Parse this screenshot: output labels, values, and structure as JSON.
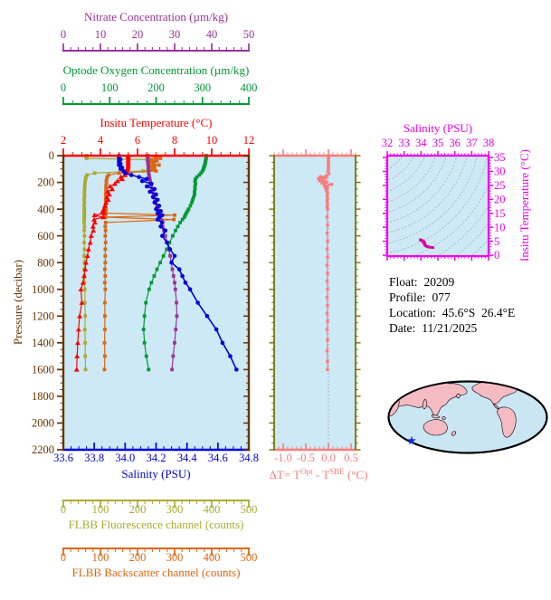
{
  "info": {
    "lines": [
      {
        "label": "Float:",
        "value": "20209"
      },
      {
        "label": "Profile:",
        "value": "077"
      },
      {
        "label": "Location:",
        "value": "45.6°S  26.4°E"
      },
      {
        "label": "Date:",
        "value": "11/21/2025"
      }
    ]
  },
  "colors": {
    "background": "#FFFFFF",
    "plot_bg": "#CDE9F5",
    "pressure": "#663300",
    "temperature": "#FF0000",
    "salinity": "#0000DD",
    "nitrate": "#993399",
    "oxygen": "#009933",
    "fluorescence": "#AAAA33",
    "backscatter": "#DD6611",
    "delta_t": "#F87C7C",
    "delta_t_side": "#737300",
    "ts_frame": "#EE00EE",
    "ts_line": "#FF1A1A",
    "ts_marker": "#DD00AA",
    "contour": "#A8A8A8",
    "zero_line": "#999999",
    "map_ocean": "#C9E6F2",
    "map_land": "#F5BBC3",
    "map_outline": "#000000",
    "star": "#1133EE",
    "info_text": "#000000"
  },
  "chart_data": [
    {
      "type": "line",
      "name": "pressure-profile-plot",
      "y_axis": {
        "label": "Pressure (decibar)",
        "min": 0,
        "max": 2200,
        "major_step": 200,
        "minor_step": 50
      },
      "x_axes": {
        "nitrate": {
          "title": "Nitrate Concentration (µm/kg)",
          "min": 0,
          "max": 50,
          "major": [
            "0",
            "10",
            "20",
            "30",
            "40",
            "50"
          ],
          "minor_step": 2
        },
        "oxygen": {
          "title": "Optode Oxygen Concentration (µm/kg)",
          "min": 0,
          "max": 400,
          "major": [
            "0",
            "100",
            "200",
            "300",
            "400"
          ],
          "minor_step": 20
        },
        "temperature": {
          "title": "Insitu Temperature (°C)",
          "min": 2,
          "max": 12,
          "major": [
            "2",
            "4",
            "6",
            "8",
            "10",
            "12"
          ],
          "minor_step": 0.5
        },
        "salinity": {
          "title": "Salinity (PSU)",
          "min": 33.6,
          "max": 34.8,
          "major": [
            "33.6",
            "33.8",
            "34.0",
            "34.2",
            "34.4",
            "34.6",
            "34.8"
          ],
          "minor_step": 0.05
        },
        "fluorescence": {
          "title": "FLBB Fluorescence channel (counts)",
          "min": 0,
          "max": 500,
          "major": [
            "0",
            "100",
            "200",
            "300",
            "400",
            "500"
          ],
          "minor_step": 20
        },
        "backscatter": {
          "title": "FLBB Backscatter channel (counts)",
          "min": 0,
          "max": 500,
          "major": [
            "0",
            "100",
            "200",
            "300",
            "400",
            "500"
          ],
          "minor_step": 20
        }
      },
      "pressure": [
        0,
        10,
        20,
        30,
        40,
        50,
        60,
        70,
        80,
        90,
        100,
        115,
        130,
        145,
        160,
        175,
        190,
        210,
        230,
        250,
        270,
        290,
        310,
        330,
        350,
        375,
        400,
        415,
        430,
        445,
        460,
        478,
        500,
        530,
        560,
        600,
        650,
        700,
        750,
        800,
        850,
        900,
        950,
        1000,
        1100,
        1200,
        1300,
        1400,
        1500,
        1600
      ],
      "series": [
        {
          "name": "Fluorescence",
          "axis": "fluorescence",
          "marker": "square",
          "color": "#AAAA33",
          "values": [
            62,
            61,
            63,
            225,
            238,
            242,
            236,
            243,
            240,
            244,
            238,
            215,
            85,
            64,
            61,
            60,
            59,
            58,
            58,
            57,
            57,
            57,
            57,
            56,
            57,
            56,
            57,
            56,
            57,
            56,
            57,
            56,
            56,
            57,
            56,
            57,
            56,
            57,
            56,
            57,
            56,
            57,
            57,
            58,
            58,
            59,
            58,
            59,
            59,
            60
          ]
        },
        {
          "name": "Backscatter",
          "axis": "backscatter",
          "marker": "square",
          "color": "#DD6611",
          "values": [
            225,
            248,
            262,
            238,
            252,
            230,
            244,
            258,
            235,
            246,
            240,
            250,
            150,
            122,
            118,
            117,
            116,
            116,
            115,
            115,
            115,
            114,
            115,
            114,
            115,
            114,
            115,
            114,
            115,
            300,
            114,
            298,
            114,
            113,
            114,
            113,
            114,
            113,
            113,
            113,
            112,
            113,
            112,
            113,
            112,
            112,
            112,
            111,
            112,
            111
          ]
        },
        {
          "name": "Oxygen",
          "axis": "oxygen",
          "marker": "square",
          "color": "#009933",
          "values": [
            308,
            308,
            308,
            307,
            307,
            306,
            306,
            305,
            304,
            303,
            302,
            300,
            297,
            293,
            288,
            285,
            284,
            285,
            284,
            284,
            283,
            283,
            281,
            279,
            277,
            274,
            270,
            268,
            265,
            263,
            261,
            257,
            252,
            247,
            242,
            236,
            229,
            223,
            216,
            209,
            202,
            196,
            190,
            185,
            178,
            175,
            173,
            175,
            179,
            184
          ]
        },
        {
          "name": "Temperature",
          "axis": "temperature",
          "marker": "triangle",
          "color": "#FF0000",
          "values": [
            5.5,
            5.5,
            5.51,
            5.5,
            5.49,
            5.5,
            5.5,
            5.49,
            5.5,
            5.48,
            5.47,
            5.44,
            5.38,
            5.32,
            5.1,
            5.18,
            4.92,
            4.78,
            4.52,
            4.64,
            4.4,
            4.48,
            4.35,
            4.42,
            4.3,
            4.24,
            4.18,
            4.12,
            4.2,
            3.68,
            4.15,
            3.66,
            3.7,
            3.6,
            3.62,
            3.5,
            3.45,
            3.36,
            3.3,
            3.22,
            3.18,
            3.12,
            3.06,
            2.95,
            3.0,
            2.88,
            2.82,
            2.78,
            2.74,
            2.72
          ]
        },
        {
          "name": "Nitrate",
          "axis": "nitrate",
          "marker": "square",
          "color": "#993399",
          "values": [
            22.8,
            22.8,
            22.8,
            22.8,
            22.8,
            22.8,
            22.8,
            22.9,
            22.9,
            22.9,
            22.9,
            23.0,
            23.0,
            23.1,
            23.2,
            23.3,
            23.4,
            23.5,
            23.7,
            23.9,
            24.1,
            24.3,
            24.5,
            24.7,
            24.9,
            25.2,
            25.5,
            25.6,
            25.8,
            25.9,
            26.1,
            26.3,
            26.5,
            26.8,
            27.1,
            27.5,
            28.0,
            28.4,
            28.8,
            29.1,
            29.4,
            29.7,
            30.0,
            30.2,
            30.5,
            30.6,
            30.3,
            30.0,
            29.6,
            29.3
          ]
        },
        {
          "name": "Salinity",
          "axis": "salinity",
          "marker": "circle",
          "color": "#0000DD",
          "values": [
            33.96,
            33.96,
            33.96,
            33.97,
            33.96,
            33.96,
            33.97,
            33.96,
            33.97,
            33.98,
            33.97,
            33.99,
            34.0,
            34.04,
            34.09,
            34.14,
            34.11,
            34.17,
            34.14,
            34.19,
            34.16,
            34.2,
            34.18,
            34.21,
            34.19,
            34.22,
            34.2,
            34.23,
            34.21,
            34.24,
            34.22,
            34.21,
            34.24,
            34.23,
            34.26,
            34.24,
            34.27,
            34.29,
            34.32,
            34.3,
            34.35,
            34.37,
            34.39,
            34.42,
            34.47,
            34.53,
            34.59,
            34.63,
            34.68,
            34.72
          ]
        }
      ]
    },
    {
      "type": "scatter",
      "name": "delta-t-plot",
      "x_axis": {
        "label_parts": [
          {
            "t": "ΔT= T"
          },
          {
            "t": "Opt",
            "sup": true
          },
          {
            "t": " - T"
          },
          {
            "t": "SBE",
            "sup": true
          },
          {
            "t": " (°C)"
          }
        ],
        "min": -1.2,
        "max": 0.6,
        "major": [
          "-1.0",
          "-0.5",
          "0.0",
          "0.5"
        ],
        "minor_step": 0.1
      },
      "y_axis": {
        "min": 0,
        "max": 2200,
        "major_step": 200,
        "minor_step": 50
      },
      "zero_line": true,
      "pressure": [
        0,
        15,
        30,
        45,
        60,
        75,
        90,
        105,
        120,
        135,
        150,
        158,
        165,
        172,
        180,
        188,
        196,
        205,
        215,
        225,
        235,
        245,
        255,
        265,
        280,
        300,
        320,
        340,
        360,
        380,
        400,
        460,
        520,
        580,
        640,
        700,
        760,
        820,
        880,
        940,
        1000,
        1060,
        1120,
        1180,
        1240,
        1300,
        1380,
        1460,
        1540,
        1600
      ],
      "values": [
        0,
        0,
        0,
        0,
        0,
        0,
        0,
        0,
        -0.01,
        0.01,
        -0.04,
        -0.18,
        -0.06,
        -0.22,
        -0.1,
        -0.19,
        -0.05,
        -0.14,
        0.07,
        -0.09,
        -0.02,
        -0.06,
        -0.03,
        -0.04,
        -0.02,
        -0.03,
        -0.02,
        -0.03,
        -0.02,
        -0.03,
        -0.02,
        -0.03,
        -0.02,
        -0.03,
        -0.02,
        -0.03,
        -0.02,
        -0.03,
        -0.02,
        -0.03,
        -0.02,
        -0.03,
        -0.02,
        -0.03,
        -0.02,
        -0.03,
        -0.02,
        -0.03,
        -0.02,
        -0.02
      ]
    },
    {
      "type": "line",
      "name": "ts-diagram",
      "x_axis": {
        "label": "Salinity (PSU)",
        "min": 32,
        "max": 38,
        "major": [
          "32",
          "33",
          "34",
          "35",
          "36",
          "37",
          "38"
        ],
        "minor_step": 0.2
      },
      "y_axis": {
        "label": "Insitu Temperature (°C)",
        "min": 0,
        "max": 35,
        "major": [
          "0",
          "5",
          "10",
          "15",
          "20",
          "25",
          "30",
          "35"
        ],
        "minor_step": 1
      },
      "note": "curve derived from Salinity and Temperature series of the pressure-profile plot",
      "density_contours": true
    }
  ],
  "map": {
    "star_x": 455,
    "star_y": 487
  }
}
